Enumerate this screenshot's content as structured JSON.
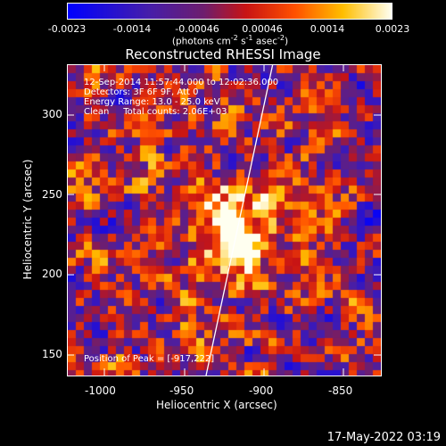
{
  "colorbar": {
    "ticks": [
      "-0.0023",
      "-0.0014",
      "-0.00046",
      "0.00046",
      "0.0014",
      "0.0023"
    ],
    "unit_prefix": "(photons cm",
    "unit_exp1": "-2",
    "unit_mid1": " s",
    "unit_exp2": "-1",
    "unit_mid2": " asec",
    "unit_exp3": "-2",
    "unit_suffix": ")"
  },
  "title": "Reconstructed RHESSI Image",
  "info": {
    "time": "12-Sep-2014 11:57:44.000 to 12:02:36.000",
    "detectors": "Detectors: 3F 6F 9F, Att 0",
    "energy": "Energy Range: 13.0 - 25.0 keV",
    "clean": "Clean     Total counts: 2.06E+03",
    "peak": "Position of Peak = [-917,222]"
  },
  "axes": {
    "xlabel": "Heliocentric X (arcsec)",
    "ylabel": "Heliocentric Y (arcsec)",
    "xticks": [
      "-1000",
      "-950",
      "-900",
      "-850"
    ],
    "yticks": [
      "300",
      "250",
      "200",
      "150"
    ]
  },
  "footer": "17-May-2022 03:19",
  "colors": {
    "background": "#000000",
    "foreground": "#ffffff"
  }
}
